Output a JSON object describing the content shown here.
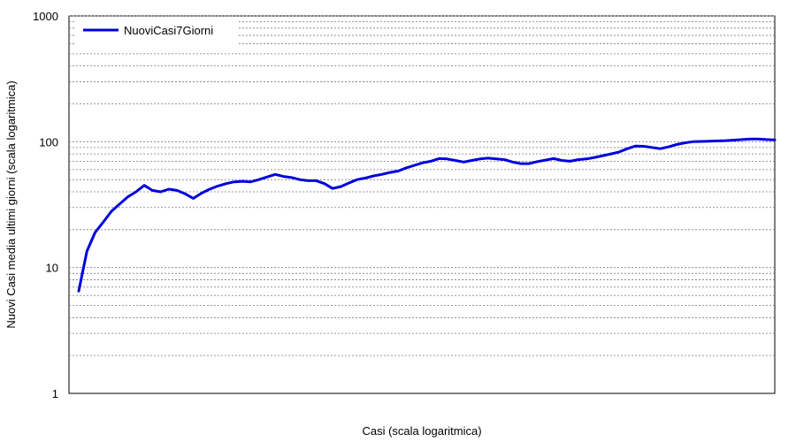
{
  "chart_data": {
    "type": "line",
    "title": "",
    "xlabel": "Casi (scala logaritmica)",
    "ylabel": "Nuovi Casi media ultimi giorni (scala logaritmica)",
    "x_scale": "log",
    "y_scale": "log",
    "ylim": [
      1,
      1000
    ],
    "yticks": [
      "1",
      "10",
      "100",
      "1000"
    ],
    "grid": "horizontal-dotted",
    "legend_position": "top-left",
    "series": [
      {
        "name": "NuoviCasi7Giorni",
        "color": "#0000dd",
        "y": [
          6.5,
          13.5,
          19,
          23,
          28,
          32,
          36.5,
          40,
          45,
          41,
          40,
          42,
          41,
          38.5,
          35.5,
          39,
          42,
          44.5,
          46.5,
          48,
          48.5,
          48,
          50,
          52.5,
          55,
          53,
          52,
          50,
          49,
          49,
          46.5,
          42.5,
          44,
          47,
          50,
          51.5,
          53.5,
          55,
          57,
          58.5,
          62,
          65,
          68,
          70,
          73.5,
          73,
          71,
          69,
          71,
          73,
          74,
          73,
          72,
          69,
          67,
          67,
          69.5,
          71.5,
          73.5,
          71,
          70,
          72,
          73,
          75,
          77.5,
          80,
          83,
          88,
          92.5,
          92,
          90,
          88,
          91,
          95,
          98,
          100,
          100.5,
          101,
          101.5,
          102,
          103,
          104,
          105,
          105,
          104,
          103.5
        ]
      }
    ]
  }
}
